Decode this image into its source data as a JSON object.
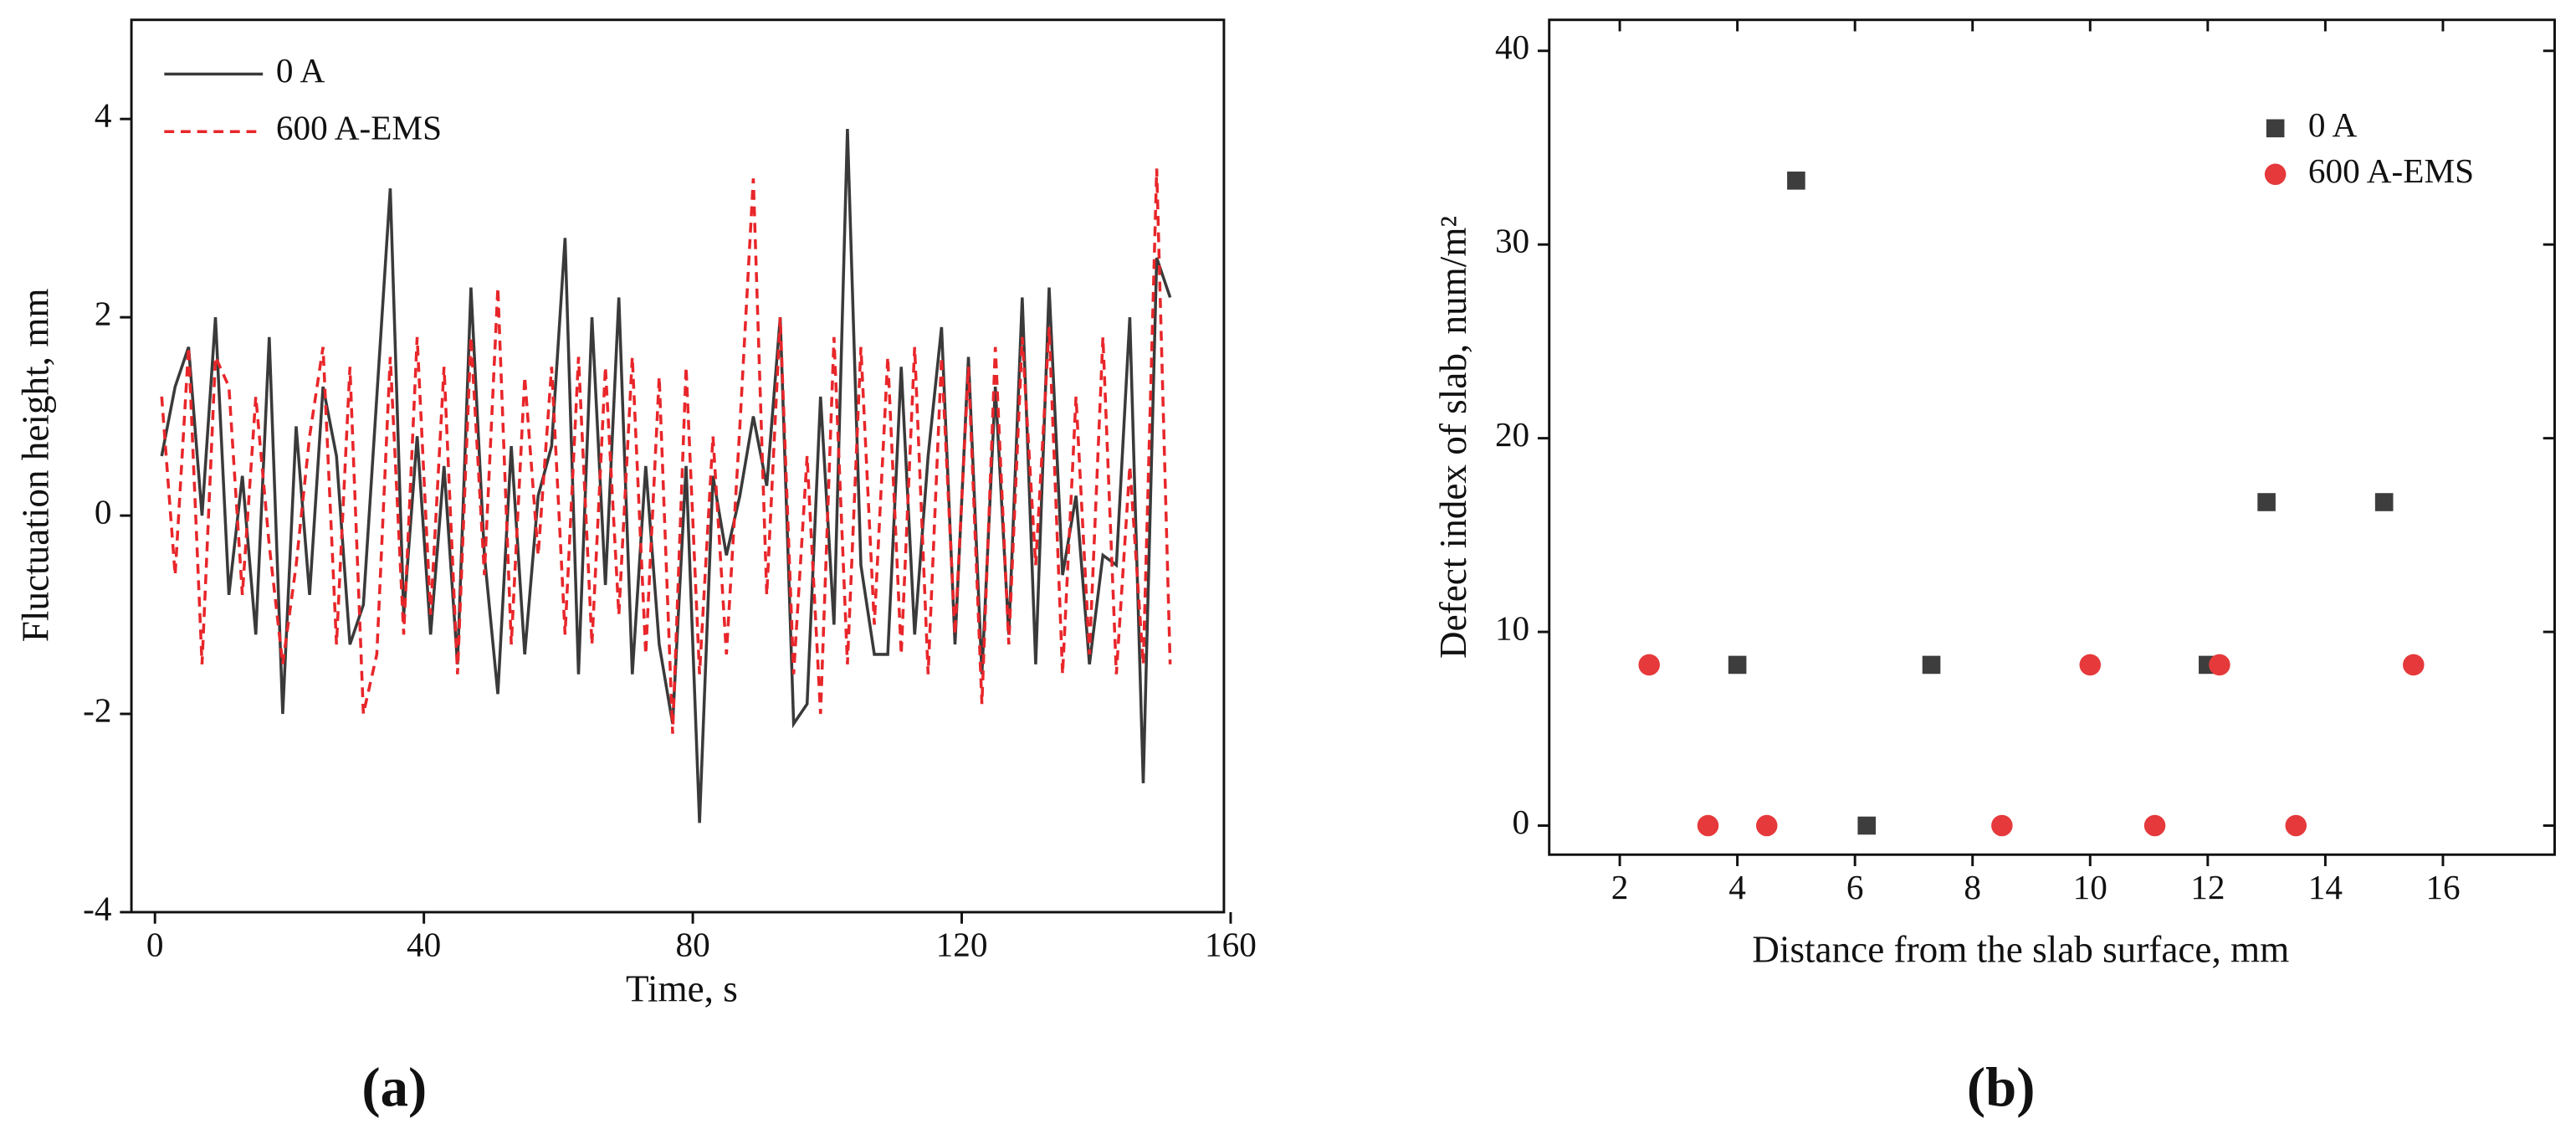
{
  "chart_data": [
    {
      "type": "line",
      "caption": "(a)",
      "xlabel": "Time, s",
      "ylabel": "Fluctuation height, mm",
      "legend": "upper left",
      "xlim": [
        -3.5,
        159
      ],
      "ylim": [
        -4,
        5
      ],
      "xticks": [
        0,
        40,
        80,
        120,
        160
      ],
      "yticks": [
        -4,
        -2,
        0,
        2,
        4
      ],
      "x": [
        1,
        3,
        5,
        7,
        9,
        11,
        13,
        15,
        17,
        19,
        21,
        23,
        25,
        27,
        29,
        31,
        33,
        35,
        37,
        39,
        41,
        43,
        45,
        47,
        49,
        51,
        53,
        55,
        57,
        59,
        61,
        63,
        65,
        67,
        69,
        71,
        73,
        75,
        77,
        79,
        81,
        83,
        85,
        87,
        89,
        91,
        93,
        95,
        97,
        99,
        101,
        103,
        105,
        107,
        109,
        111,
        113,
        115,
        117,
        119,
        121,
        123,
        125,
        127,
        129,
        131,
        133,
        135,
        137,
        139,
        141,
        143,
        145,
        147,
        149,
        151
      ],
      "series": [
        {
          "name": "0 A",
          "color": "#3a3a3a",
          "dash": false,
          "values": [
            0.6,
            1.3,
            1.7,
            0.0,
            2.0,
            -0.8,
            0.4,
            -1.2,
            1.8,
            -2.0,
            0.9,
            -0.8,
            1.3,
            0.6,
            -1.3,
            -0.9,
            1.2,
            3.3,
            -1.0,
            0.8,
            -1.2,
            0.5,
            -1.5,
            2.3,
            -0.4,
            -1.8,
            0.7,
            -1.4,
            0.2,
            0.7,
            2.8,
            -1.6,
            2.0,
            -0.7,
            2.2,
            -1.6,
            0.5,
            -1.3,
            -2.1,
            0.5,
            -3.1,
            0.4,
            -0.4,
            0.2,
            1.0,
            0.3,
            2.0,
            -2.1,
            -1.9,
            1.2,
            -1.1,
            3.9,
            -0.5,
            -1.4,
            -1.4,
            1.5,
            -1.2,
            0.6,
            1.9,
            -1.3,
            1.6,
            -1.6,
            1.3,
            -1.2,
            2.2,
            -1.5,
            2.3,
            -0.6,
            0.2,
            -1.5,
            -0.4,
            -0.5,
            2.0,
            -2.7,
            2.6,
            2.2
          ]
        },
        {
          "name": "600 A-EMS",
          "color": "#e8262a",
          "dash": true,
          "values": [
            1.2,
            -0.6,
            1.7,
            -1.5,
            1.6,
            1.3,
            -0.8,
            1.2,
            -0.3,
            -1.5,
            -0.5,
            0.8,
            1.7,
            -1.3,
            1.5,
            -2.0,
            -1.4,
            1.6,
            -1.2,
            1.8,
            -1.0,
            1.5,
            -1.6,
            1.8,
            -0.6,
            2.3,
            -1.3,
            1.4,
            -0.4,
            1.5,
            -1.2,
            1.6,
            -1.3,
            1.5,
            -1.0,
            1.6,
            -1.4,
            1.4,
            -2.2,
            1.5,
            -1.6,
            0.8,
            -1.4,
            0.9,
            3.4,
            -0.8,
            2.0,
            -1.6,
            0.6,
            -2.0,
            1.8,
            -1.5,
            1.7,
            -1.1,
            1.6,
            -1.4,
            1.7,
            -1.6,
            1.6,
            -1.2,
            1.5,
            -1.9,
            1.7,
            -1.3,
            1.8,
            -0.5,
            1.9,
            -1.6,
            1.2,
            -1.4,
            1.8,
            -1.6,
            0.5,
            -1.5,
            3.5,
            -1.5
          ]
        }
      ]
    },
    {
      "type": "scatter",
      "caption": "(b)",
      "xlabel": "Distance from the slab surface, mm",
      "ylabel": "Defect index of slab, num/m²",
      "legend": "upper right",
      "xlim": [
        0.8,
        17.9
      ],
      "ylim": [
        -1.5,
        41.6
      ],
      "xticks": [
        2,
        4,
        6,
        8,
        10,
        12,
        14,
        16
      ],
      "yticks": [
        0,
        10,
        20,
        30,
        40
      ],
      "series": [
        {
          "name": "0 A",
          "color": "#3d3d3d",
          "marker": "square",
          "x": [
            4,
            5,
            6.2,
            7.3,
            12,
            13,
            15
          ],
          "values": [
            8.3,
            33.3,
            0,
            8.3,
            8.3,
            16.7,
            16.7
          ]
        },
        {
          "name": "600 A-EMS",
          "color": "#e5393b",
          "marker": "circle",
          "x": [
            2.5,
            3.5,
            4.5,
            8.5,
            10,
            11.1,
            12.2,
            13.5,
            15.5
          ],
          "values": [
            8.3,
            0,
            0,
            0,
            8.3,
            0,
            8.3,
            0,
            8.3
          ]
        }
      ]
    }
  ]
}
